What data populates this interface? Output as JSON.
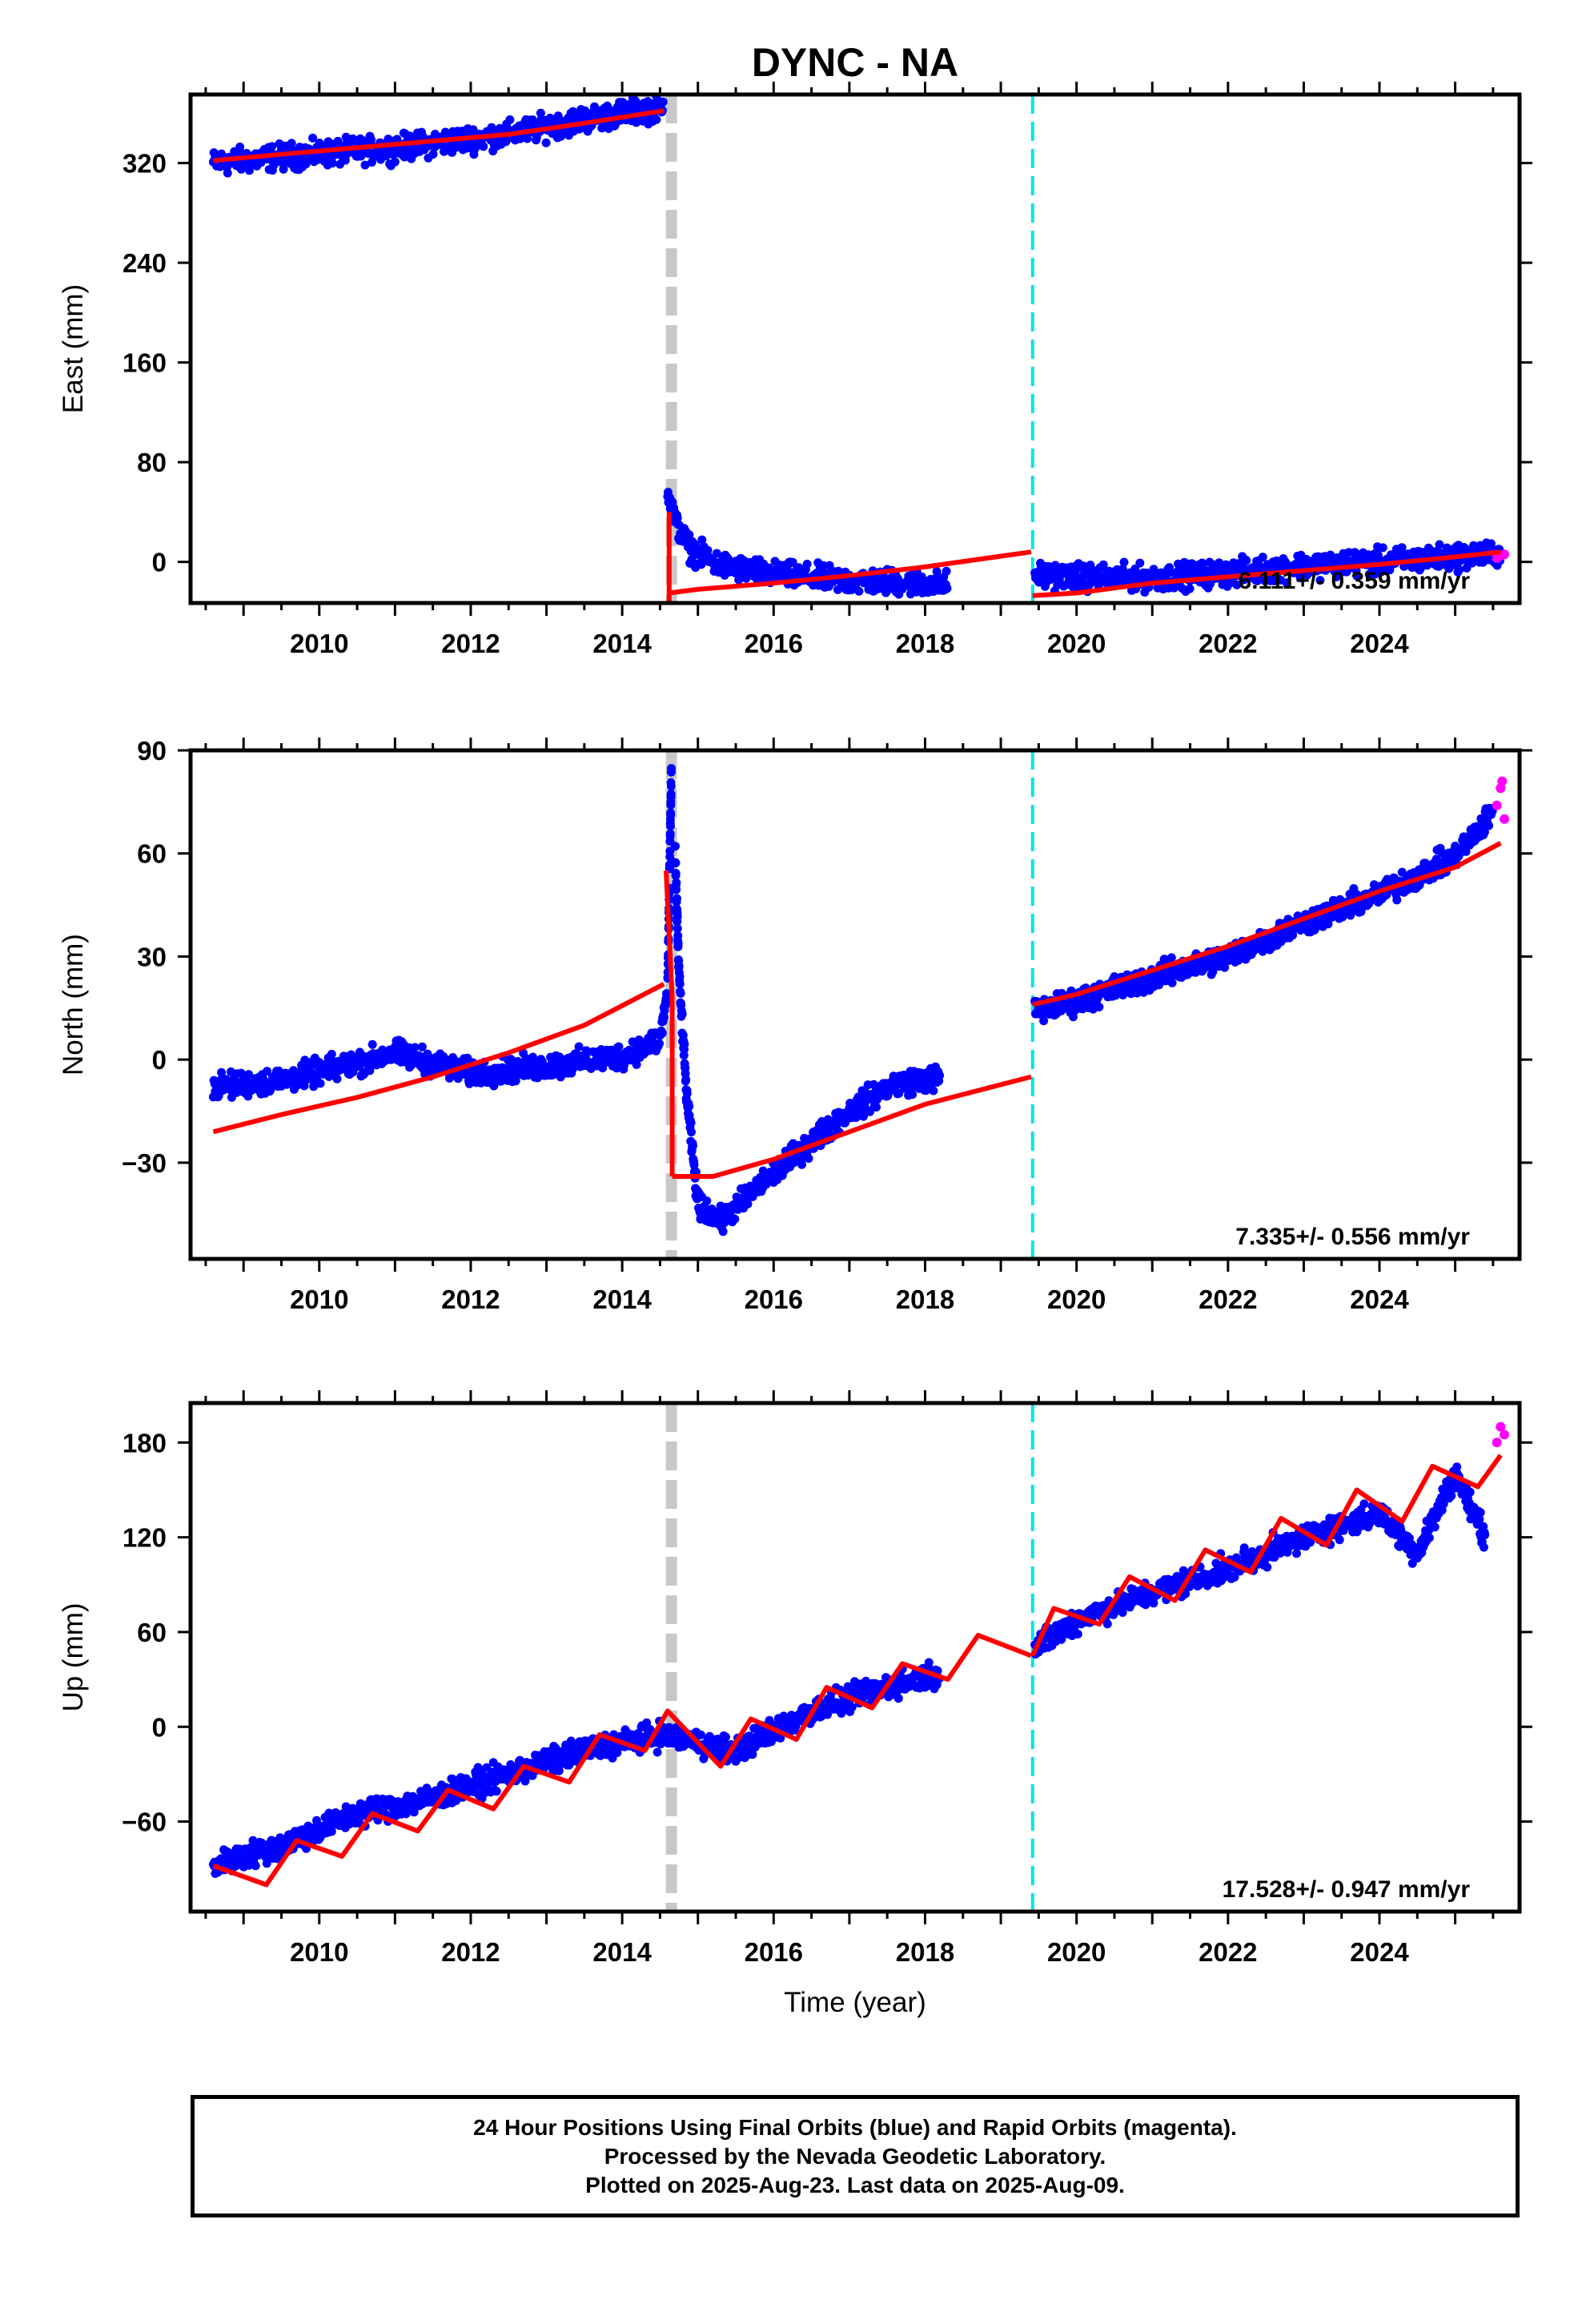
{
  "title": "DYNC - NA",
  "chart_data": [
    {
      "type": "scatter",
      "ylabel": "East (mm)",
      "xlabel": "",
      "xlim": [
        2008.3,
        2025.85
      ],
      "ylim": [
        -33,
        375
      ],
      "xticks": [
        2010,
        2012,
        2014,
        2016,
        2018,
        2020,
        2022,
        2024
      ],
      "yticks": [
        0,
        80,
        160,
        240,
        320
      ],
      "ytick_labels": [
        "0",
        "80",
        "160",
        "240",
        "320"
      ],
      "rate_label": "6.111+/- 0.359 mm/yr",
      "offset_lines": {
        "gray": 2014.65,
        "cyan": 2019.42
      },
      "final_orbits_segments": [
        [
          [
            2008.6,
            320
          ],
          [
            2009.5,
            325
          ],
          [
            2011.0,
            332
          ],
          [
            2012.5,
            343
          ],
          [
            2013.5,
            355
          ],
          [
            2014.55,
            365
          ]
        ],
        [
          [
            2014.6,
            60
          ],
          [
            2014.7,
            32
          ],
          [
            2014.9,
            10
          ],
          [
            2015.3,
            -3
          ],
          [
            2016.0,
            -10
          ],
          [
            2017.0,
            -15
          ],
          [
            2018.0,
            -17
          ],
          [
            2018.3,
            -18
          ]
        ],
        [
          [
            2019.45,
            -10
          ],
          [
            2020.0,
            -12
          ],
          [
            2021.0,
            -13
          ],
          [
            2022.0,
            -9
          ],
          [
            2023.0,
            -3
          ],
          [
            2024.0,
            0
          ],
          [
            2025.0,
            4
          ],
          [
            2025.6,
            7
          ]
        ]
      ],
      "rapid_orbits": [
        [
          2025.55,
          3
        ],
        [
          2025.6,
          5
        ],
        [
          2025.65,
          6
        ]
      ],
      "model_segments": [
        [
          [
            2008.6,
            322
          ],
          [
            2009.5,
            327
          ],
          [
            2011.0,
            335
          ],
          [
            2012.5,
            343
          ],
          [
            2013.5,
            352
          ],
          [
            2014.55,
            362
          ]
        ],
        [
          [
            2014.62,
            40
          ],
          [
            2014.62,
            -33
          ]
        ],
        [
          [
            2014.62,
            -25
          ],
          [
            2015.0,
            -22
          ],
          [
            2016.0,
            -17
          ],
          [
            2017.0,
            -11
          ],
          [
            2018.0,
            -4
          ],
          [
            2019.4,
            8
          ]
        ],
        [
          [
            2019.42,
            -27
          ],
          [
            2020.0,
            -25
          ],
          [
            2021.0,
            -17
          ],
          [
            2022.0,
            -12
          ],
          [
            2023.0,
            -7
          ],
          [
            2024.0,
            -2
          ],
          [
            2025.0,
            4
          ],
          [
            2025.6,
            8
          ]
        ]
      ]
    },
    {
      "type": "scatter",
      "ylabel": "North (mm)",
      "xlabel": "",
      "xlim": [
        2008.3,
        2025.85
      ],
      "ylim": [
        -58,
        90
      ],
      "xticks": [
        2010,
        2012,
        2014,
        2016,
        2018,
        2020,
        2022,
        2024
      ],
      "yticks": [
        -30,
        0,
        30,
        60,
        90
      ],
      "ytick_labels": [
        "−30",
        "0",
        "30",
        "60",
        "90"
      ],
      "rate_label": "7.335+/- 0.556 mm/yr",
      "offset_lines": {
        "gray": 2014.65,
        "cyan": 2019.42
      },
      "final_orbits_segments": [
        [
          [
            2008.6,
            -8
          ],
          [
            2009.5,
            -6
          ],
          [
            2010.5,
            -1
          ],
          [
            2011.0,
            2
          ],
          [
            2012.0,
            -4
          ],
          [
            2013.0,
            -2
          ],
          [
            2014.0,
            1
          ],
          [
            2014.5,
            6
          ],
          [
            2014.6,
            20
          ],
          [
            2014.65,
            85
          ]
        ],
        [
          [
            2014.7,
            60
          ],
          [
            2014.75,
            25
          ],
          [
            2014.85,
            -10
          ],
          [
            2015.0,
            -42
          ],
          [
            2015.3,
            -47
          ],
          [
            2016.0,
            -33
          ],
          [
            2017.0,
            -15
          ],
          [
            2017.6,
            -7
          ],
          [
            2018.2,
            -5
          ]
        ],
        [
          [
            2019.45,
            14
          ],
          [
            2020.0,
            17
          ],
          [
            2021.0,
            24
          ],
          [
            2022.0,
            30
          ],
          [
            2023.0,
            40
          ],
          [
            2024.0,
            48
          ],
          [
            2025.0,
            59
          ],
          [
            2025.5,
            72
          ]
        ]
      ],
      "rapid_orbits": [
        [
          2025.55,
          74
        ],
        [
          2025.6,
          79
        ],
        [
          2025.62,
          81
        ],
        [
          2025.65,
          70
        ]
      ],
      "model_segments": [
        [
          [
            2008.6,
            -21
          ],
          [
            2009.5,
            -16
          ],
          [
            2010.5,
            -11
          ],
          [
            2011.5,
            -5
          ],
          [
            2012.5,
            2
          ],
          [
            2013.5,
            10
          ],
          [
            2014.55,
            22
          ]
        ],
        [
          [
            2014.58,
            55
          ],
          [
            2014.66,
            18
          ],
          [
            2014.66,
            -34
          ]
        ],
        [
          [
            2014.66,
            -34
          ],
          [
            2015.2,
            -34
          ],
          [
            2016.0,
            -29
          ],
          [
            2017.0,
            -21
          ],
          [
            2018.0,
            -13
          ],
          [
            2019.4,
            -5
          ]
        ],
        [
          [
            2019.42,
            16
          ],
          [
            2020.0,
            19
          ],
          [
            2021.0,
            26
          ],
          [
            2022.0,
            33
          ],
          [
            2023.0,
            41
          ],
          [
            2024.0,
            49
          ],
          [
            2025.0,
            56
          ],
          [
            2025.6,
            63
          ]
        ]
      ]
    },
    {
      "type": "scatter",
      "ylabel": "Up (mm)",
      "xlabel": "Time (year)",
      "xlim": [
        2008.3,
        2025.85
      ],
      "ylim": [
        -117,
        205
      ],
      "xticks": [
        2010,
        2012,
        2014,
        2016,
        2018,
        2020,
        2022,
        2024
      ],
      "yticks": [
        -60,
        0,
        60,
        120,
        180
      ],
      "ytick_labels": [
        "−60",
        "0",
        "60",
        "120",
        "180"
      ],
      "rate_label": "17.528+/- 0.947 mm/yr",
      "offset_lines": {
        "gray": 2014.65,
        "cyan": 2019.42
      },
      "final_orbits_segments": [
        [
          [
            2008.6,
            -88
          ],
          [
            2009.5,
            -75
          ],
          [
            2010.5,
            -55
          ],
          [
            2011.5,
            -45
          ],
          [
            2012.5,
            -30
          ],
          [
            2013.5,
            -15
          ],
          [
            2014.5,
            -5
          ],
          [
            2015.5,
            -15
          ],
          [
            2016.5,
            10
          ],
          [
            2017.5,
            25
          ],
          [
            2018.2,
            35
          ]
        ],
        [
          [
            2019.45,
            50
          ],
          [
            2020.0,
            68
          ],
          [
            2021.0,
            85
          ],
          [
            2022.0,
            100
          ],
          [
            2023.0,
            120
          ],
          [
            2024.0,
            135
          ],
          [
            2024.5,
            110
          ],
          [
            2025.0,
            160
          ],
          [
            2025.4,
            120
          ]
        ]
      ],
      "rapid_orbits": [
        [
          2025.55,
          180
        ],
        [
          2025.6,
          190
        ],
        [
          2025.65,
          185
        ]
      ],
      "model_segments": [
        [
          [
            2008.6,
            -88
          ],
          [
            2009.3,
            -100
          ],
          [
            2009.7,
            -72
          ],
          [
            2010.3,
            -82
          ],
          [
            2010.7,
            -55
          ],
          [
            2011.3,
            -66
          ],
          [
            2011.7,
            -40
          ],
          [
            2012.3,
            -52
          ],
          [
            2012.7,
            -25
          ],
          [
            2013.3,
            -35
          ],
          [
            2013.7,
            -5
          ],
          [
            2014.3,
            -15
          ],
          [
            2014.6,
            10
          ],
          [
            2015.3,
            -25
          ],
          [
            2015.7,
            5
          ],
          [
            2016.3,
            -8
          ],
          [
            2016.7,
            25
          ],
          [
            2017.3,
            12
          ],
          [
            2017.7,
            40
          ],
          [
            2018.3,
            30
          ],
          [
            2018.7,
            58
          ],
          [
            2019.4,
            45
          ]
        ],
        [
          [
            2019.42,
            45
          ],
          [
            2019.7,
            75
          ],
          [
            2020.3,
            65
          ],
          [
            2020.7,
            95
          ],
          [
            2021.3,
            80
          ],
          [
            2021.7,
            112
          ],
          [
            2022.3,
            98
          ],
          [
            2022.7,
            132
          ],
          [
            2023.3,
            115
          ],
          [
            2023.7,
            150
          ],
          [
            2024.3,
            130
          ],
          [
            2024.7,
            165
          ],
          [
            2025.3,
            152
          ],
          [
            2025.6,
            172
          ]
        ]
      ]
    }
  ],
  "footer": {
    "line1": "24 Hour Positions Using Final Orbits (blue) and Rapid Orbits (magenta).",
    "line2": "Processed by the Nevada Geodetic Laboratory.",
    "line3": "Plotted on 2025-Aug-23. Last data on 2025-Aug-09."
  }
}
